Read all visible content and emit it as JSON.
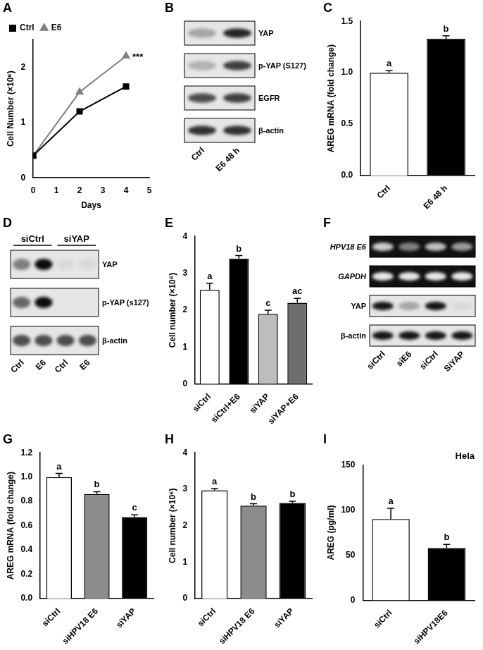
{
  "chart_data": [
    {
      "panel": "A",
      "type": "line",
      "xlabel": "Days",
      "ylabel": "Cell Number (×10⁶)",
      "x": [
        0,
        2,
        4
      ],
      "series": [
        {
          "name": "Ctrl",
          "color": "#000000",
          "marker": "square",
          "line_style": "solid",
          "values": [
            0.4,
            1.2,
            1.65
          ]
        },
        {
          "name": "E6",
          "color": "#808080",
          "marker": "triangle",
          "line_style": "solid",
          "values": [
            0.4,
            1.55,
            2.2
          ]
        }
      ],
      "xlim": [
        0,
        5
      ],
      "xticks": [
        0,
        1,
        2,
        3,
        4,
        5
      ],
      "ylim": [
        0,
        2.5
      ],
      "yticks": [
        0,
        1,
        2
      ],
      "grid": false,
      "legend": "top-left",
      "annotations": [
        {
          "text": "***",
          "x": 4,
          "y": 2.2
        }
      ]
    },
    {
      "panel": "C",
      "type": "bar",
      "ylabel": "AREG mRNA (fold change)",
      "categories": [
        "Ctrl",
        "E6 48 h"
      ],
      "values": [
        1.0,
        1.33
      ],
      "errors": [
        0.02,
        0.03
      ],
      "colors": [
        "#ffffff",
        "#000000"
      ],
      "ylim": [
        0,
        1.5
      ],
      "yticks": [
        {
          "value": 0,
          "label": "0.0"
        },
        {
          "value": 0.5,
          "label": "0.5"
        },
        {
          "value": 1,
          "label": "1.0"
        },
        {
          "value": 1.5,
          "label": "1.5"
        }
      ],
      "grid": false,
      "annotations": [
        {
          "text": "a",
          "x": "Ctrl"
        },
        {
          "text": "b",
          "x": "E6 48 h"
        }
      ]
    },
    {
      "panel": "E",
      "type": "bar",
      "ylabel": "Cell number (×10⁶)",
      "categories": [
        "siCtrl",
        "siCtrl+E6",
        "siYAP",
        "siYAP+E6"
      ],
      "values": [
        2.55,
        3.4,
        1.9,
        2.2
      ],
      "errors": [
        0.18,
        0.08,
        0.1,
        0.12
      ],
      "colors": [
        "#ffffff",
        "#000000",
        "#bdbdbd",
        "#6e6e6e"
      ],
      "ylim": [
        0,
        4
      ],
      "yticks": [
        0,
        1,
        2,
        3,
        4
      ],
      "grid": false,
      "annotations": [
        {
          "text": "a",
          "x": "siCtrl"
        },
        {
          "text": "b",
          "x": "siCtrl+E6"
        },
        {
          "text": "c",
          "x": "siYAP"
        },
        {
          "text": "ac",
          "x": "siYAP+E6"
        }
      ]
    },
    {
      "panel": "G",
      "type": "bar",
      "ylabel": "AREG mRNA (fold change)",
      "categories": [
        "siCtrl",
        "siHPV18 E6",
        "siYAP"
      ],
      "values": [
        1.0,
        0.86,
        0.67
      ],
      "errors": [
        0.03,
        0.02,
        0.02
      ],
      "colors": [
        "#ffffff",
        "#8c8c8c",
        "#000000"
      ],
      "ylim": [
        0,
        1.2
      ],
      "yticks": [
        {
          "value": 0,
          "label": "0.0"
        },
        {
          "value": 0.2,
          "label": "0.2"
        },
        {
          "value": 0.4,
          "label": "0.4"
        },
        {
          "value": 0.6,
          "label": "0.6"
        },
        {
          "value": 0.8,
          "label": "0.8"
        },
        {
          "value": 1,
          "label": "1.0"
        },
        {
          "value": 1.2,
          "label": "1.2"
        }
      ],
      "grid": false,
      "annotations": [
        {
          "text": "a",
          "x": "siCtrl"
        },
        {
          "text": "b",
          "x": "siHPV18 E6"
        },
        {
          "text": "c",
          "x": "siYAP"
        }
      ]
    },
    {
      "panel": "H",
      "type": "bar",
      "ylabel": "Cell number (×10⁶)",
      "categories": [
        "siCtrl",
        "siHPV18 E6",
        "siYAP"
      ],
      "values": [
        2.97,
        2.55,
        2.62
      ],
      "errors": [
        0.05,
        0.05,
        0.05
      ],
      "colors": [
        "#ffffff",
        "#8c8c8c",
        "#000000"
      ],
      "ylim": [
        0,
        4
      ],
      "yticks": [
        0,
        1,
        2,
        3,
        4
      ],
      "grid": false,
      "annotations": [
        {
          "text": "a",
          "x": "siCtrl"
        },
        {
          "text": "b",
          "x": "siHPV18 E6"
        },
        {
          "text": "b",
          "x": "siYAP"
        }
      ]
    },
    {
      "panel": "I",
      "type": "bar",
      "title": "Hela",
      "ylabel": "AREG (pg/ml)",
      "categories": [
        "siCtrl",
        "siHPV18E6"
      ],
      "values": [
        90,
        58
      ],
      "errors": [
        12,
        4
      ],
      "colors": [
        "#ffffff",
        "#000000"
      ],
      "ylim": [
        0,
        150
      ],
      "yticks": [
        0,
        50,
        100,
        150
      ],
      "grid": false,
      "annotations": [
        {
          "text": "a",
          "x": "siCtrl"
        },
        {
          "text": "b",
          "x": "siHPV18E6"
        }
      ]
    }
  ],
  "blots": [
    {
      "panel": "B",
      "lanes": [
        "Ctrl",
        "E6 48 h"
      ],
      "rows": [
        {
          "name": "YAP",
          "kind": "blot",
          "bands": [
            0.35,
            0.85
          ]
        },
        {
          "name": "p-YAP (S127)",
          "kind": "blot",
          "bands": [
            0.3,
            0.75
          ]
        },
        {
          "name": "EGFR",
          "kind": "blot",
          "bands": [
            0.7,
            0.75
          ]
        },
        {
          "name": "β-actin",
          "kind": "blot",
          "bands": [
            0.8,
            0.8
          ]
        }
      ]
    },
    {
      "panel": "D",
      "groups": [
        {
          "label": "siCtrl",
          "lanes": [
            "Ctrl",
            "E6"
          ]
        },
        {
          "label": "siYAP",
          "lanes": [
            "Ctrl",
            "E6"
          ]
        }
      ],
      "rows": [
        {
          "name": "YAP",
          "kind": "blot",
          "bands": [
            0.5,
            0.95,
            0.15,
            0.15
          ]
        },
        {
          "name": "p-YAP (s127)",
          "kind": "blot",
          "bands": [
            0.6,
            0.95,
            0.1,
            0.1
          ]
        },
        {
          "name": "β-actin",
          "kind": "blot",
          "bands": [
            0.7,
            0.7,
            0.7,
            0.7
          ]
        }
      ]
    },
    {
      "panel": "F",
      "lanes": [
        "siCtrl",
        "siE6",
        "siCtrl",
        "SiYAP"
      ],
      "rows": [
        {
          "name": "HPV18 E6",
          "kind": "gel",
          "bands": [
            0.8,
            0.5,
            0.75,
            0.6
          ]
        },
        {
          "name": "GAPDH",
          "kind": "gel",
          "bands": [
            0.9,
            0.9,
            0.9,
            0.9
          ]
        },
        {
          "name": "YAP",
          "kind": "blot",
          "bands": [
            0.9,
            0.35,
            0.9,
            0.15
          ]
        },
        {
          "name": "β-actin",
          "kind": "blot",
          "bands": [
            0.9,
            0.9,
            0.9,
            0.9
          ]
        }
      ]
    }
  ]
}
